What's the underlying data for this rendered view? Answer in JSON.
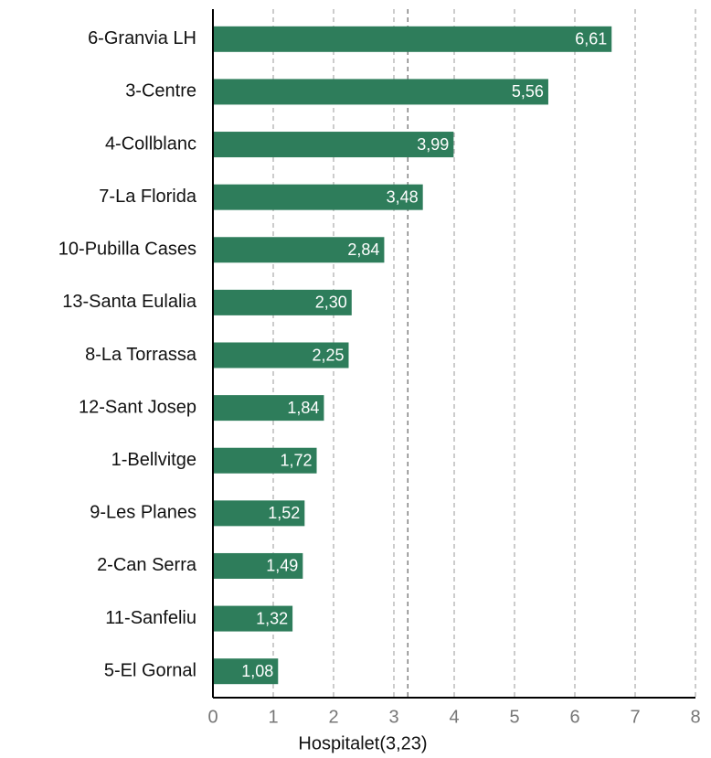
{
  "chart_data": {
    "type": "barh",
    "categories": [
      "6-Granvia LH",
      "3-Centre",
      "4-Collblanc",
      "7-La Florida",
      "10-Pubilla Cases",
      "13-Santa Eulalia",
      "8-La Torrassa",
      "12-Sant Josep",
      "1-Bellvitge",
      "9-Les Planes",
      "2-Can Serra",
      "11-Sanfeliu",
      "5-El Gornal"
    ],
    "values": [
      6.61,
      5.56,
      3.99,
      3.48,
      2.84,
      2.3,
      2.25,
      1.84,
      1.72,
      1.52,
      1.49,
      1.32,
      1.08
    ],
    "value_labels": [
      "6,61",
      "5,56",
      "3,99",
      "3,48",
      "2,84",
      "2,30",
      "2,25",
      "1,84",
      "1,72",
      "1,52",
      "1,49",
      "1,32",
      "1,08"
    ],
    "color": "#2e7d5b",
    "xlabel": "Hospitalet(3,23)",
    "reference_line": 3.23,
    "xlim": [
      0,
      8
    ],
    "xticks": [
      0,
      1,
      2,
      3,
      4,
      5,
      6,
      7,
      8
    ],
    "grid": true
  }
}
